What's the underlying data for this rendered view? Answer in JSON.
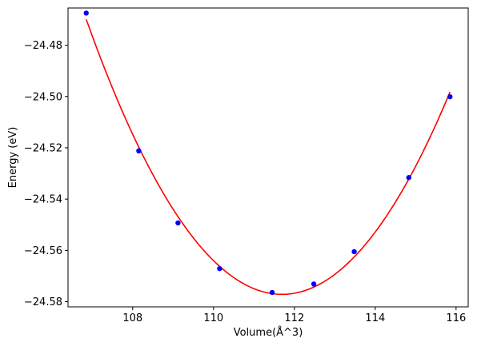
{
  "chart_data": {
    "type": "scatter",
    "title": "",
    "xlabel": "Volume(Å^3)",
    "ylabel": "Energy (eV)",
    "xlim": [
      106.4,
      116.3
    ],
    "ylim": [
      -24.582,
      -24.4655
    ],
    "xticks": [
      108,
      110,
      112,
      114,
      116
    ],
    "xtick_labels": [
      "108",
      "110",
      "112",
      "114",
      "116"
    ],
    "yticks": [
      -24.48,
      -24.5,
      -24.52,
      -24.54,
      -24.56,
      -24.58
    ],
    "ytick_labels": [
      "−24.48",
      "−24.50",
      "−24.52",
      "−24.54",
      "−24.56",
      "−24.58"
    ],
    "grid": false,
    "legend": "none",
    "series": [
      {
        "kind": "points",
        "color": "#0000ff",
        "x": [
          106.85,
          108.15,
          109.12,
          110.15,
          111.45,
          112.48,
          113.48,
          114.83,
          115.85
        ],
        "y": [
          -24.4675,
          -24.5212,
          -24.5493,
          -24.5671,
          -24.5764,
          -24.5731,
          -24.5605,
          -24.5316,
          -24.5001
        ]
      },
      {
        "kind": "fit-curve",
        "color": "#ff0000",
        "x_range": [
          106.85,
          115.85
        ],
        "x_min": 111.5,
        "y_min": -24.5765
      }
    ]
  }
}
